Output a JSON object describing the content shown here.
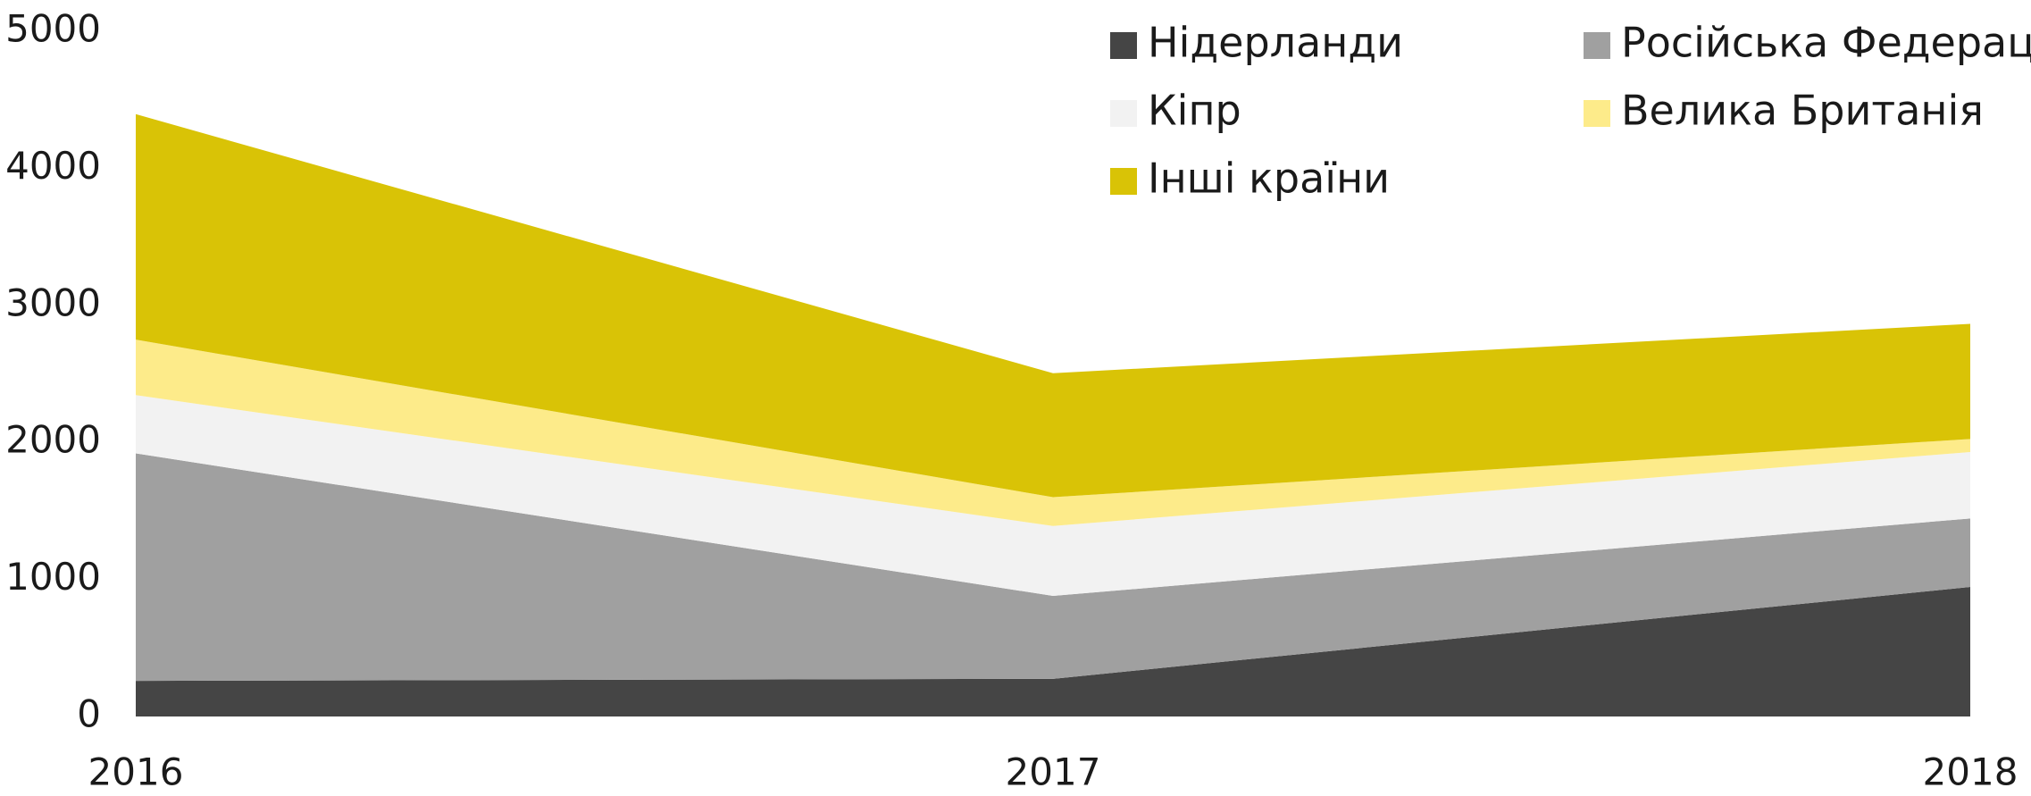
{
  "chart_data": {
    "type": "stacked_area",
    "x": [
      2016,
      2017,
      2018
    ],
    "xlim": [
      2016,
      2018
    ],
    "xticks": [
      2016,
      2017,
      2018
    ],
    "ylim": [
      0,
      5000
    ],
    "yticks": [
      0,
      1000,
      2000,
      3000,
      4000,
      5000
    ],
    "grid": false,
    "legend": "top-right",
    "series": [
      {
        "name": "Нідерланди",
        "color": "#454545",
        "values": [
          260,
          275,
          945
        ]
      },
      {
        "name": "Російська Федерація",
        "color": "#a0a0a0",
        "values": [
          1660,
          605,
          500
        ]
      },
      {
        "name": "Кіпр",
        "color": "#f2f2f2",
        "values": [
          425,
          510,
          485
        ]
      },
      {
        "name": "Велика Британія",
        "color": "#fdeb8a",
        "values": [
          405,
          210,
          95
        ]
      },
      {
        "name": "Інші країни",
        "color": "#d9c306",
        "values": [
          1645,
          905,
          840
        ]
      }
    ]
  }
}
